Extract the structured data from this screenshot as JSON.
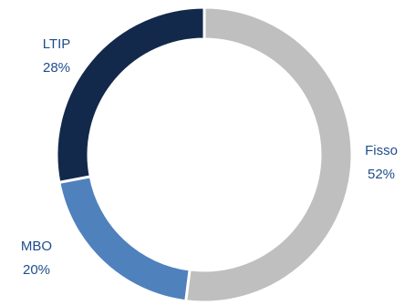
{
  "chart_data": {
    "type": "pie",
    "style": "donut",
    "title": "",
    "slices": [
      {
        "label": "Fisso",
        "percent_label": "52%",
        "value": 52,
        "color": "#bfbfbf"
      },
      {
        "label": "MBO",
        "percent_label": "20%",
        "value": 20,
        "color": "#4f81bd"
      },
      {
        "label": "LTIP",
        "percent_label": "28%",
        "value": 28,
        "color": "#13294b"
      }
    ],
    "start_angle_deg": 0,
    "direction": "clockwise",
    "legend": "none",
    "label_color": "#1f4e8c"
  }
}
